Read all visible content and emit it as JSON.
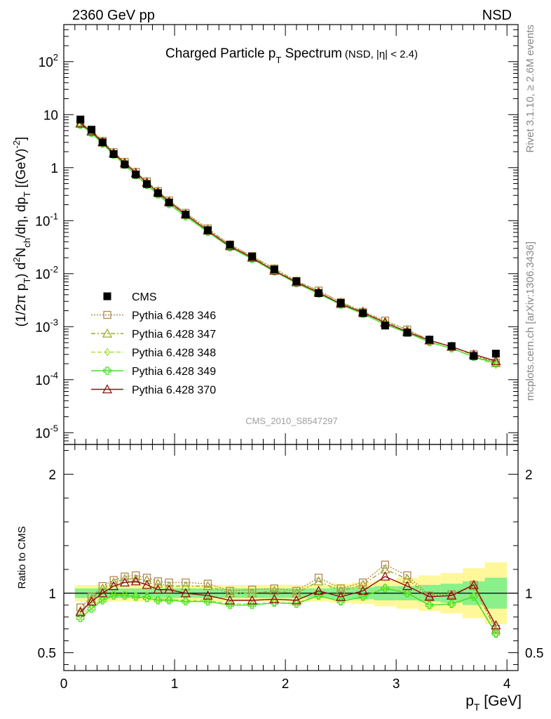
{
  "header": {
    "left": "2360 GeV pp",
    "right": "NSD"
  },
  "side_text": {
    "rivet": "Rivet 3.1.10, ≥ 2.6M events",
    "source": "mcplots.cern.ch [arXiv:1306.3436]"
  },
  "watermark": "CMS_2010_S8547297",
  "colors": {
    "cms": "#000000",
    "p346": "#b08850",
    "p347": "#a0a830",
    "p348": "#a8e040",
    "p349": "#40e020",
    "p370": "#901010",
    "band_inner": "#8af08a",
    "band_outer": "#fff89a"
  },
  "chart_data": [
    {
      "type": "line",
      "title": "Charged Particle pT Spectrum",
      "title_main": "Charged Particle p",
      "title_sub": "T",
      "title_tail": " Spectrum",
      "title_note": "(NSD, |η| < 2.4)",
      "ylabel": "(1/2π pT) d²Nch/dη, dpT [(GeV)⁻²]",
      "ylabel_parts": {
        "a": "(1/2π p",
        "a_sub": "T",
        "b": ") d",
        "b_sup": "2",
        "c": "N",
        "c_sub": "ch",
        "d": "/dη, dp",
        "d_sub": "T",
        "e": " [(GeV)",
        "e_sup": "-2",
        "f": "]"
      },
      "yscale": "log",
      "xlim": [
        0,
        4.1
      ],
      "ylim": [
        6e-06,
        500
      ],
      "y_ticks": [
        {
          "v": 1e-05,
          "b": "10",
          "e": "-5"
        },
        {
          "v": 0.0001,
          "b": "10",
          "e": "-4"
        },
        {
          "v": 0.001,
          "b": "10",
          "e": "-3"
        },
        {
          "v": 0.01,
          "b": "10",
          "e": "-2"
        },
        {
          "v": 0.1,
          "b": "10",
          "e": "-1"
        },
        {
          "v": 1,
          "b": "1",
          "e": ""
        },
        {
          "v": 10,
          "b": "10",
          "e": ""
        },
        {
          "v": 100,
          "b": "10",
          "e": "2"
        }
      ],
      "x": [
        0.15,
        0.25,
        0.35,
        0.45,
        0.55,
        0.65,
        0.75,
        0.85,
        0.95,
        1.1,
        1.3,
        1.5,
        1.7,
        1.9,
        2.1,
        2.3,
        2.5,
        2.7,
        2.9,
        3.1,
        3.3,
        3.5,
        3.7,
        3.9
      ],
      "series": [
        {
          "name": "CMS",
          "key": "cms",
          "values": [
            8.1,
            5.2,
            3.0,
            1.8,
            1.15,
            0.74,
            0.49,
            0.33,
            0.22,
            0.13,
            0.066,
            0.035,
            0.021,
            0.012,
            0.0072,
            0.0043,
            0.0028,
            0.0018,
            0.00105,
            0.00077,
            0.00057,
            0.00043,
            0.00028,
            0.00031
          ]
        },
        {
          "name": "Pythia 6.428 346",
          "key": "p346",
          "values": [
            7.1,
            5.0,
            3.2,
            1.95,
            1.28,
            0.83,
            0.55,
            0.36,
            0.24,
            0.14,
            0.071,
            0.0355,
            0.0215,
            0.0125,
            0.0073,
            0.0048,
            0.0029,
            0.0019,
            0.0013,
            0.00088,
            0.00056,
            0.00042,
            0.0003,
            0.00021
          ]
        },
        {
          "name": "Pythia 6.428 347",
          "key": "p347",
          "values": [
            6.9,
            4.9,
            3.1,
            1.9,
            1.25,
            0.81,
            0.54,
            0.36,
            0.235,
            0.138,
            0.07,
            0.035,
            0.021,
            0.0123,
            0.0072,
            0.0047,
            0.0029,
            0.00195,
            0.00125,
            0.00087,
            0.00056,
            0.00042,
            0.00029,
            0.000205
          ]
        },
        {
          "name": "Pythia 6.428 348",
          "key": "p348",
          "values": [
            6.5,
            4.6,
            2.85,
            1.78,
            1.14,
            0.73,
            0.48,
            0.32,
            0.21,
            0.123,
            0.062,
            0.0318,
            0.019,
            0.011,
            0.0066,
            0.0042,
            0.0026,
            0.00175,
            0.0011,
            0.00078,
            0.00051,
            0.00039,
            0.00027,
            0.00019
          ]
        },
        {
          "name": "Pythia 6.428 349",
          "key": "p349",
          "values": [
            6.4,
            4.5,
            2.82,
            1.76,
            1.13,
            0.72,
            0.47,
            0.31,
            0.205,
            0.121,
            0.061,
            0.0314,
            0.0189,
            0.011,
            0.0066,
            0.0042,
            0.0026,
            0.00175,
            0.0011,
            0.00077,
            0.00051,
            0.00039,
            0.00027,
            0.000205
          ]
        },
        {
          "name": "Pythia 6.428 370",
          "key": "p370",
          "values": [
            6.8,
            4.8,
            3.0,
            1.87,
            1.22,
            0.79,
            0.52,
            0.34,
            0.225,
            0.13,
            0.065,
            0.033,
            0.02,
            0.0114,
            0.0069,
            0.0044,
            0.0027,
            0.00185,
            0.00119,
            0.0008,
            0.00055,
            0.00042,
            0.0003,
            0.000225
          ]
        }
      ]
    },
    {
      "type": "line",
      "ylabel": "Ratio to CMS",
      "xlabel": "pT [GeV]",
      "xlabel_parts": {
        "a": "p",
        "a_sub": "T",
        "b": " [GeV]"
      },
      "xlim": [
        0,
        4.1
      ],
      "ylim": [
        0.35,
        2.25
      ],
      "x_ticks": [
        "0",
        "1",
        "2",
        "3",
        "4"
      ],
      "y_ticks": [
        "0.5",
        "1",
        "2"
      ],
      "x": [
        0.15,
        0.25,
        0.35,
        0.45,
        0.55,
        0.65,
        0.75,
        0.85,
        0.95,
        1.1,
        1.3,
        1.5,
        1.7,
        1.9,
        2.1,
        2.3,
        2.5,
        2.7,
        2.9,
        3.1,
        3.3,
        3.5,
        3.7,
        3.9
      ],
      "band_edges": [
        0.1,
        0.2,
        0.3,
        0.4,
        0.5,
        0.6,
        0.7,
        0.8,
        0.9,
        1.0,
        1.2,
        1.4,
        1.6,
        1.8,
        2.0,
        2.2,
        2.4,
        2.6,
        2.8,
        3.0,
        3.2,
        3.4,
        3.6,
        3.8,
        4.0
      ],
      "band_inner": [
        0.04,
        0.04,
        0.04,
        0.04,
        0.04,
        0.04,
        0.04,
        0.04,
        0.04,
        0.04,
        0.04,
        0.04,
        0.04,
        0.04,
        0.04,
        0.04,
        0.05,
        0.05,
        0.06,
        0.06,
        0.07,
        0.08,
        0.1,
        0.13
      ],
      "band_outer": [
        0.07,
        0.07,
        0.07,
        0.07,
        0.07,
        0.07,
        0.07,
        0.07,
        0.07,
        0.07,
        0.07,
        0.07,
        0.07,
        0.07,
        0.07,
        0.07,
        0.08,
        0.09,
        0.11,
        0.13,
        0.15,
        0.17,
        0.21,
        0.26
      ],
      "series": [
        {
          "name": "Pythia 6.428 346",
          "key": "p346",
          "values": [
            0.88,
            0.97,
            1.06,
            1.11,
            1.14,
            1.15,
            1.13,
            1.1,
            1.09,
            1.09,
            1.08,
            1.02,
            1.03,
            1.04,
            1.02,
            1.13,
            1.04,
            1.09,
            1.24,
            1.15,
            0.98,
            0.99,
            1.07,
            0.7
          ]
        },
        {
          "name": "Pythia 6.428 347",
          "key": "p347",
          "values": [
            0.85,
            0.95,
            1.04,
            1.09,
            1.12,
            1.12,
            1.11,
            1.08,
            1.06,
            1.06,
            1.06,
            1.0,
            1.0,
            1.02,
            1.0,
            1.1,
            1.02,
            1.07,
            1.2,
            1.12,
            0.97,
            0.98,
            1.06,
            0.69
          ]
        },
        {
          "name": "Pythia 6.428 348",
          "key": "p348",
          "values": [
            0.81,
            0.89,
            0.95,
            0.99,
            0.99,
            0.98,
            0.98,
            0.95,
            0.95,
            0.94,
            0.94,
            0.91,
            0.91,
            0.92,
            0.92,
            0.98,
            0.93,
            0.97,
            1.05,
            1.01,
            0.9,
            0.91,
            0.98,
            0.66
          ]
        },
        {
          "name": "Pythia 6.428 349",
          "key": "p349",
          "values": [
            0.79,
            0.87,
            0.94,
            0.98,
            0.98,
            0.97,
            0.96,
            0.94,
            0.94,
            0.93,
            0.93,
            0.9,
            0.9,
            0.92,
            0.91,
            0.98,
            0.93,
            0.97,
            1.04,
            1.0,
            0.9,
            0.91,
            0.97,
            0.66
          ]
        },
        {
          "name": "Pythia 6.428 370",
          "key": "p370",
          "values": [
            0.84,
            0.93,
            1.0,
            1.06,
            1.09,
            1.1,
            1.07,
            1.03,
            1.03,
            1.0,
            0.98,
            0.94,
            0.94,
            0.95,
            0.94,
            1.02,
            0.97,
            1.02,
            1.14,
            1.06,
            0.97,
            0.98,
            1.07,
            0.73
          ]
        }
      ]
    }
  ],
  "legend": [
    {
      "key": "cms",
      "label": "CMS"
    },
    {
      "key": "p346",
      "label": "Pythia 6.428 346"
    },
    {
      "key": "p347",
      "label": "Pythia 6.428 347"
    },
    {
      "key": "p348",
      "label": "Pythia 6.428 348"
    },
    {
      "key": "p349",
      "label": "Pythia 6.428 349"
    },
    {
      "key": "p370",
      "label": "Pythia 6.428 370"
    }
  ]
}
